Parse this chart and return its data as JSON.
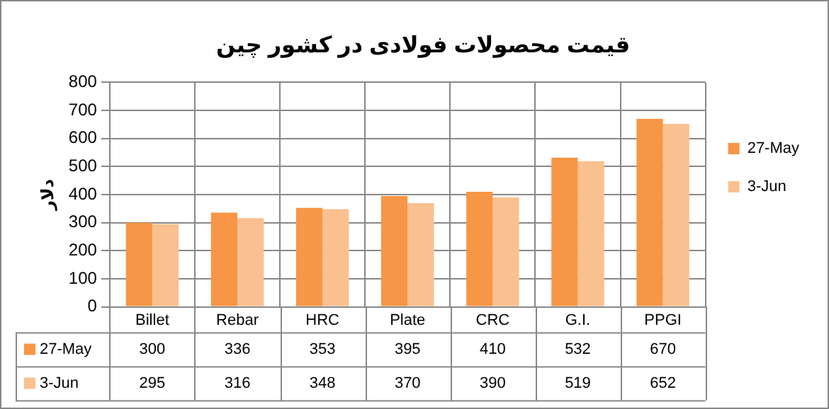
{
  "chart_data": {
    "type": "bar",
    "title": "قیمت محصولات فولادی در کشور چین",
    "ylabel": "دلار",
    "categories": [
      "Billet",
      "Rebar",
      "HRC",
      "Plate",
      "CRC",
      "G.I.",
      "PPGI"
    ],
    "series": [
      {
        "name": "27-May",
        "color": "#f79646",
        "values": [
          300,
          336,
          353,
          395,
          410,
          532,
          670
        ]
      },
      {
        "name": "3-Jun",
        "color": "#fac090",
        "values": [
          295,
          316,
          348,
          370,
          390,
          519,
          652
        ]
      }
    ],
    "ylim": [
      0,
      800
    ],
    "yticks": [
      0,
      100,
      200,
      300,
      400,
      500,
      600,
      700,
      800
    ],
    "grid": true,
    "legend": "right",
    "data_labels": true
  }
}
